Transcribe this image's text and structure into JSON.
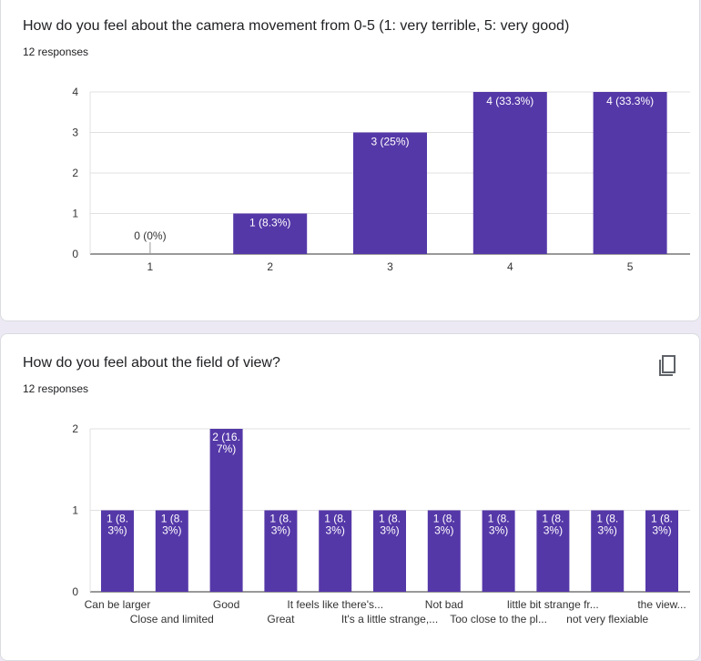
{
  "questions": [
    {
      "title": "How do you feel about the camera movement from 0-5 (1: very terrible, 5: very good)",
      "responses": "12 responses"
    },
    {
      "title": "How do you feel about the field of view?",
      "responses": "12 responses",
      "copy_icon": "copy-chart-icon"
    }
  ],
  "colors": {
    "bar": "#5538a8",
    "grid": "#e0e0e0",
    "axis": "#333333"
  },
  "chart_data": [
    {
      "type": "bar",
      "categories": [
        "1",
        "2",
        "3",
        "4",
        "5"
      ],
      "values": [
        0,
        1,
        3,
        4,
        4
      ],
      "labels": [
        "0 (0%)",
        "1 (8.3%)",
        "3 (25%)",
        "4 (33.3%)",
        "4 (33.3%)"
      ],
      "ylim": [
        0,
        4
      ],
      "yticks": [
        "0",
        "1",
        "2",
        "3",
        "4"
      ],
      "grid": true
    },
    {
      "type": "bar",
      "categories": [
        "Can be larger",
        "Close and limited",
        "Good",
        "Great",
        "It feels like there's...",
        "It's a little strange,...",
        "Not bad",
        "Too close to the pl...",
        "little bit strange fr...",
        "not very flexiable",
        "the view..."
      ],
      "values": [
        1,
        1,
        2,
        1,
        1,
        1,
        1,
        1,
        1,
        1,
        1
      ],
      "labels": [
        [
          "1 (8.",
          "3%)"
        ],
        [
          "1 (8.",
          "3%)"
        ],
        [
          "2 (16.",
          "7%)"
        ],
        [
          "1 (8.",
          "3%)"
        ],
        [
          "1 (8.",
          "3%)"
        ],
        [
          "1 (8.",
          "3%)"
        ],
        [
          "1 (8.",
          "3%)"
        ],
        [
          "1 (8.",
          "3%)"
        ],
        [
          "1 (8.",
          "3%)"
        ],
        [
          "1 (8.",
          "3%)"
        ],
        [
          "1 (8.",
          "3%)"
        ]
      ],
      "ylim": [
        0,
        2
      ],
      "yticks": [
        "0",
        "1",
        "2"
      ],
      "grid": true
    }
  ]
}
